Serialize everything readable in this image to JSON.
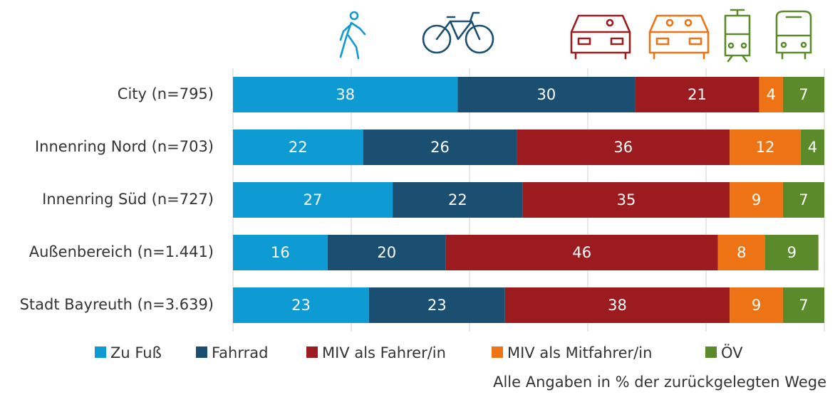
{
  "chart_data": {
    "type": "stacked_barh",
    "categories": [
      "City (n=795)",
      "Innenring Nord (n=703)",
      "Innenring Süd (n=727)",
      "Außenbereich (n=1.441)",
      "Stadt Bayreuth (n=3.639)"
    ],
    "series": [
      {
        "name": "Zu Fuß",
        "color": "#0e9bd3",
        "values": [
          38,
          22,
          27,
          16,
          23
        ]
      },
      {
        "name": "Fahrrad",
        "color": "#1b4f72",
        "values": [
          30,
          26,
          22,
          20,
          23
        ]
      },
      {
        "name": "MIV als Fahrer/in",
        "color": "#9b1b1e",
        "values": [
          21,
          36,
          35,
          46,
          38
        ]
      },
      {
        "name": "MIV als Mitfahrer/in",
        "color": "#ee7314",
        "values": [
          4,
          12,
          9,
          8,
          9
        ]
      },
      {
        "name": "ÖV",
        "color": "#5a8a2a",
        "values": [
          7,
          4,
          7,
          9,
          7
        ]
      }
    ],
    "xlim": [
      0,
      100
    ],
    "xticks": [
      0,
      20,
      40,
      60,
      80,
      100
    ],
    "grid": true,
    "note": "Alle Angaben in % der zurückgelegten Wege"
  }
}
